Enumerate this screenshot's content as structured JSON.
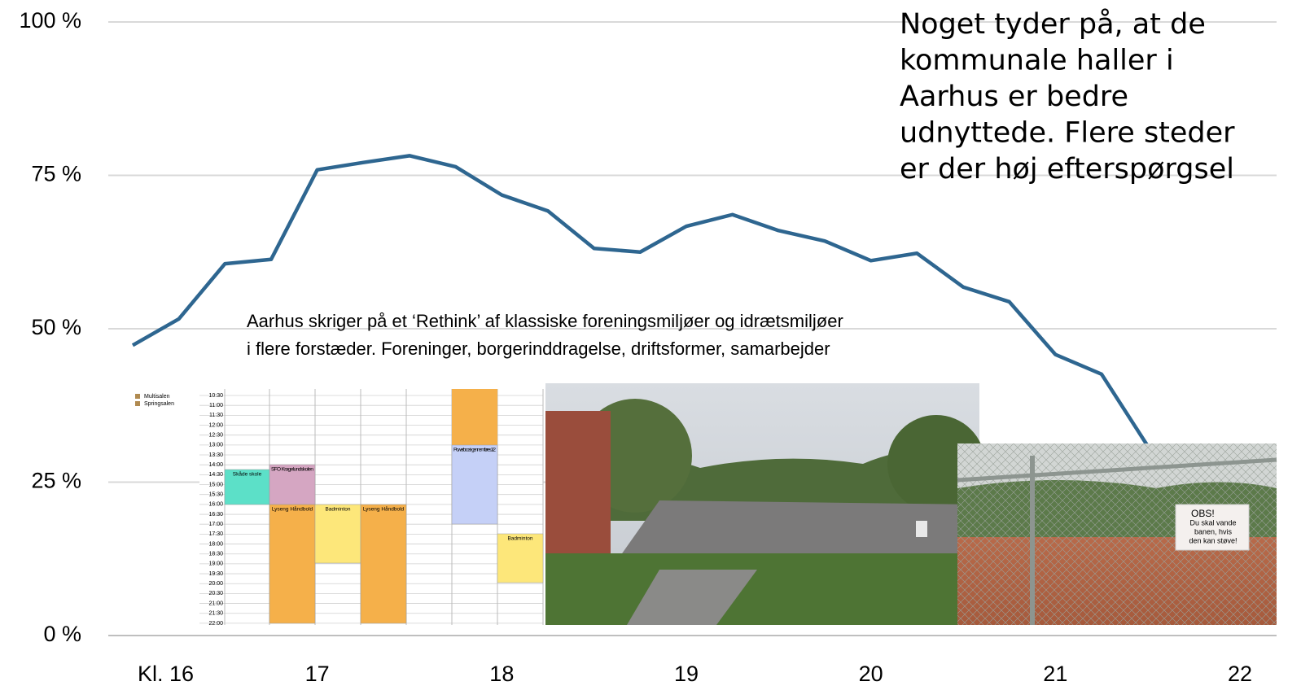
{
  "chart_data": {
    "type": "line",
    "annotation": [
      "Noget tyder på, at de",
      "kommunale haller i",
      "Aarhus er bedre",
      "udnyttede. Flere steder",
      "er der høj efterspørgsel"
    ],
    "subtitle": [
      "Aarhus skriger på et ‘Rethink’ af klassiske foreningsmiljøer og idrætsmiljøer",
      "i flere forstæder. Foreninger, borgerinddragelse, driftsformer, samarbejder"
    ],
    "x": [
      16,
      16.25,
      16.5,
      16.75,
      17,
      17.25,
      17.5,
      17.75,
      18,
      18.25,
      18.5,
      18.75,
      19,
      19.25,
      19.5,
      19.75,
      20,
      20.25,
      20.5,
      20.75,
      21,
      21.25,
      21.5
    ],
    "series": [
      {
        "color": "#2e6690",
        "values": [
          47.3,
          51.6,
          60.6,
          61.3,
          75.9,
          77.1,
          78.2,
          76.4,
          71.8,
          69.2,
          63.1,
          62.5,
          66.7,
          68.6,
          66.0,
          64.3,
          61.1,
          62.3,
          56.8,
          54.4,
          45.8,
          42.6,
          30.9
        ]
      }
    ],
    "xlim": [
      16,
      22
    ],
    "xticks": [
      {
        "value": 16,
        "label": "Kl.  16"
      },
      17,
      18,
      19,
      20,
      21,
      22
    ],
    "ylim": [
      0,
      100
    ],
    "yticks": [
      {
        "value": 0,
        "label": "0 %"
      },
      {
        "value": 25,
        "label": "25 %"
      },
      {
        "value": 50,
        "label": "50 %"
      },
      {
        "value": 75,
        "label": "75 %"
      },
      {
        "value": 100,
        "label": "100 %"
      }
    ],
    "grid": true
  },
  "schedule": {
    "rooms": [
      "Multisalen",
      "Springsalen"
    ],
    "times": [
      "10:30",
      "11:00",
      "11:30",
      "12:00",
      "12:30",
      "13:00",
      "13:30",
      "14:00",
      "14:30",
      "15:00",
      "15:30",
      "16:00",
      "16:30",
      "17:00",
      "17:30",
      "18:00",
      "18:30",
      "19:00",
      "19:30",
      "20:00",
      "20:30",
      "21:00",
      "21:30",
      "22:00"
    ],
    "bookings": [
      "Skåde skole",
      "SFO Kragelundskolen",
      "Lyseng Håndbold",
      "Badminton",
      "Lyseng Håndbold",
      "Powerboost - gennemføres 1/2",
      "Badminton"
    ]
  },
  "sign": [
    "OBS!",
    "Du skal vande",
    "banen, hvis",
    "den kan støve!"
  ]
}
